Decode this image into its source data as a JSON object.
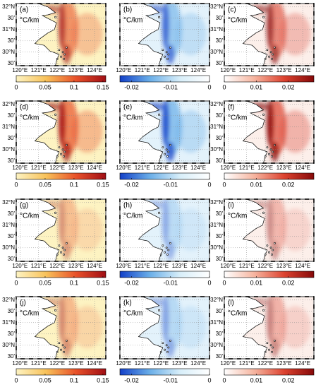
{
  "panels": [
    "(a)",
    "(b)",
    "(c)",
    "(d)",
    "(e)",
    "(f)",
    "(g)",
    "(h)",
    "(i)",
    "(j)",
    "(k)",
    "(l)"
  ],
  "unit": "°C/km",
  "map": {
    "xlim": [
      119.8,
      124.6
    ],
    "ylim": [
      29.4,
      32.15
    ],
    "lon_ticks": [
      {
        "value": 120,
        "label": "120°E"
      },
      {
        "value": 121,
        "label": "121°E"
      },
      {
        "value": 122,
        "label": "122°E"
      },
      {
        "value": 123,
        "label": "123°E"
      },
      {
        "value": 124,
        "label": "124°E"
      }
    ],
    "lat_ticks": [
      {
        "value": 32,
        "label": "32°N"
      },
      {
        "value": 31.5,
        "label": "30'"
      },
      {
        "value": 31,
        "label": "31°N"
      },
      {
        "value": 30.5,
        "label": "30'"
      },
      {
        "value": 30,
        "label": "30°N"
      },
      {
        "value": 29.5,
        "label": "30'"
      }
    ]
  },
  "colorbars": [
    {
      "lim": [
        0,
        0.155
      ],
      "ticks": [
        0,
        0.05,
        0.1,
        0.15
      ],
      "colors": [
        "#fdf3c2",
        "#f8c25a",
        "#e8512a",
        "#a10e14"
      ]
    },
    {
      "lim": [
        -0.023,
        0
      ],
      "ticks": [
        -0.02,
        -0.01,
        0
      ],
      "colors": [
        "#1340c8",
        "#6aaee8",
        "#d7eef9",
        "#ffffff"
      ]
    },
    {
      "lim": [
        0,
        0.028
      ],
      "ticks": [
        0,
        0.01,
        0.02
      ],
      "colors": [
        "#ffffff",
        "#f6b5a0",
        "#dd4330",
        "#860909"
      ]
    }
  ]
}
